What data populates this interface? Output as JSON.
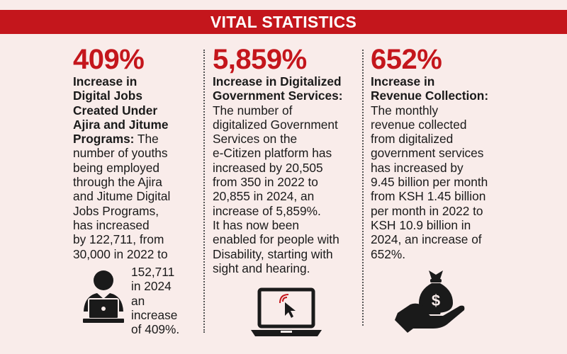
{
  "banner": {
    "title": "VITAL STATISTICS"
  },
  "columns": [
    {
      "percent": "409%",
      "heading_lines": [
        "Increase in",
        "Digital Jobs",
        "Created Under",
        "Ajira and Jitume",
        "Programs:"
      ],
      "body_first": " The",
      "body_lines": [
        "number of youths",
        "being employed",
        "through the Ajira",
        "and Jitume Digital",
        "Jobs Programs,",
        "has increased",
        "by 122,711, from",
        "30,000 in 2022 to"
      ],
      "tail_lines": [
        "152,711",
        "in 2024",
        "an",
        "increase",
        "of 409%."
      ],
      "icon": "person-laptop-icon"
    },
    {
      "percent": "5,859%",
      "heading_lines": [
        "Increase in Digitalized",
        "Government Services:"
      ],
      "body_lines": [
        "The number of",
        "digitalized Government",
        "Services on the",
        "e-Citizen platform has",
        "increased by 20,505",
        "from 350 in 2022 to",
        "20,855 in 2024, an",
        "increase of 5,859%.",
        "It has now been",
        "enabled for people with",
        "Disability, starting with",
        "sight and hearing."
      ],
      "icon": "laptop-click-icon"
    },
    {
      "percent": "652%",
      "heading_lines": [
        "Increase in",
        "Revenue Collection:"
      ],
      "body_lines": [
        "The monthly",
        "revenue collected",
        "from digitalized",
        "government services",
        "has increased by",
        "9.45 billion per month",
        "from KSH 1.45 billion",
        "per month in 2022 to",
        "KSH 10.9 billion in",
        "2024, an increase of",
        "652%."
      ],
      "icon": "money-bag-hand-icon"
    }
  ],
  "colors": {
    "accent": "#c4161c",
    "background": "#f9ecea",
    "text": "#1a1a1a"
  }
}
